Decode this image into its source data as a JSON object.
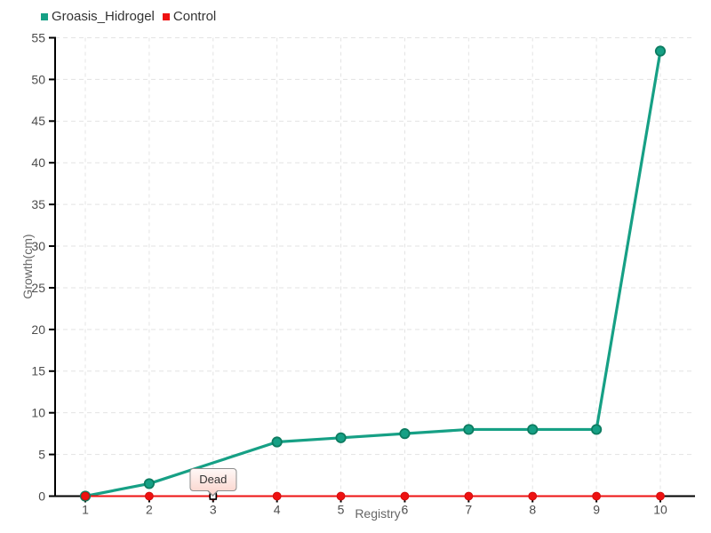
{
  "theme": {
    "background": "#ffffff",
    "grid_color": "#e3e3e3",
    "axis_color": "#000000",
    "tick_label_color": "#4d4d4d",
    "axis_title_color": "#666666",
    "legend_text_color": "#333333",
    "tooltip_border": "#8d8d8d",
    "tooltip_background_top": "#fff8f6",
    "tooltip_background_bottom": "#fbd9d2",
    "series_teal": "#16a085",
    "series_red": "#ee1111"
  },
  "chart_data": {
    "type": "line",
    "title": "",
    "xlabel": "Registry",
    "ylabel": "Growth(cm)",
    "x": [
      1,
      2,
      3,
      4,
      5,
      6,
      7,
      8,
      9,
      10
    ],
    "xticks": [
      1,
      2,
      3,
      4,
      5,
      6,
      7,
      8,
      9,
      10
    ],
    "yticks": [
      0,
      5,
      10,
      15,
      20,
      25,
      30,
      35,
      40,
      45,
      50,
      55
    ],
    "xlim": [
      1,
      10
    ],
    "ylim": [
      0,
      55
    ],
    "grid": true,
    "grid_style": "dashed",
    "legend_position": "top-left",
    "series": [
      {
        "name": "Groasis_Hidrogel",
        "color": "#16a085",
        "marker": "circle",
        "marker_fill": "#16a085",
        "marker_stroke": "#0d7c61",
        "values": [
          0,
          1.5,
          4,
          6.5,
          7,
          7.5,
          8,
          8,
          8,
          53.4
        ],
        "marker_hidden_at": [
          3
        ]
      },
      {
        "name": "Control",
        "color": "#ee1111",
        "marker": "circle",
        "marker_fill": "#ee1111",
        "marker_stroke": "#d40d0d",
        "values": [
          0,
          0,
          0,
          0,
          0,
          0,
          0,
          0,
          0,
          0
        ],
        "marker_hidden_at": []
      }
    ],
    "annotation": {
      "text": "Dead",
      "x": 3,
      "y": 0,
      "series": "Control",
      "marker": "white-square-black-border"
    }
  }
}
